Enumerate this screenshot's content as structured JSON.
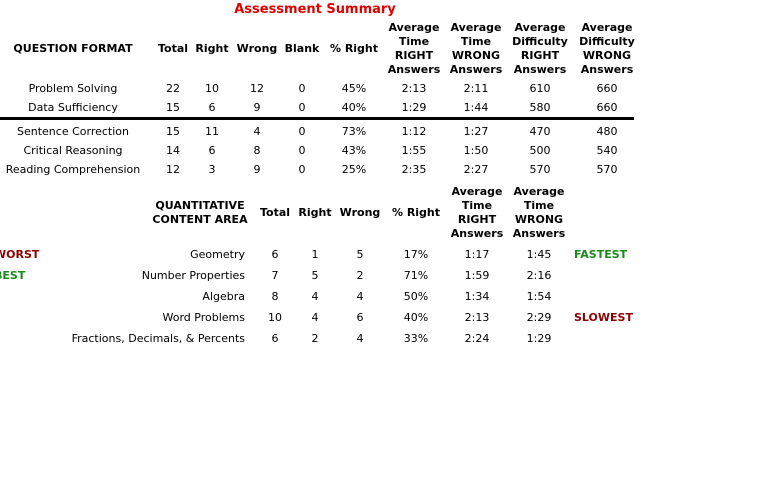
{
  "title": "Assessment Summary",
  "colors": {
    "title": "#e00000",
    "worst": "#8b0000",
    "best": "#1a8a1a",
    "fastest": "#1a8a1a",
    "slowest": "#8b0000"
  },
  "table1": {
    "headers": {
      "format": "QUESTION FORMAT",
      "total": "Total",
      "right": "Right",
      "wrong": "Wrong",
      "blank": "Blank",
      "pct": "% Right",
      "avg_time_right": [
        "Average",
        "Time",
        "RIGHT",
        "Answers"
      ],
      "avg_time_wrong": [
        "Average",
        "Time",
        "WRONG",
        "Answers"
      ],
      "avg_diff_right": [
        "Average",
        "Difficulty",
        "RIGHT",
        "Answers"
      ],
      "avg_diff_wrong": [
        "Average",
        "Difficulty",
        "WRONG",
        "Answers"
      ]
    },
    "rows": [
      {
        "label": "Problem Solving",
        "total": "22",
        "right": "10",
        "wrong": "12",
        "blank": "0",
        "pct": "45%",
        "time_right": "2:13",
        "time_wrong": "2:11",
        "diff_right": "610",
        "diff_wrong": "660"
      },
      {
        "label": "Data Sufficiency",
        "total": "15",
        "right": "6",
        "wrong": "9",
        "blank": "0",
        "pct": "40%",
        "time_right": "1:29",
        "time_wrong": "1:44",
        "diff_right": "580",
        "diff_wrong": "660"
      },
      {
        "label": "Sentence Correction",
        "total": "15",
        "right": "11",
        "wrong": "4",
        "blank": "0",
        "pct": "73%",
        "time_right": "1:12",
        "time_wrong": "1:27",
        "diff_right": "470",
        "diff_wrong": "480"
      },
      {
        "label": "Critical Reasoning",
        "total": "14",
        "right": "6",
        "wrong": "8",
        "blank": "0",
        "pct": "43%",
        "time_right": "1:55",
        "time_wrong": "1:50",
        "diff_right": "500",
        "diff_wrong": "540"
      },
      {
        "label": "Reading Comprehension",
        "total": "12",
        "right": "3",
        "wrong": "9",
        "blank": "0",
        "pct": "25%",
        "time_right": "2:35",
        "time_wrong": "2:27",
        "diff_right": "570",
        "diff_wrong": "570"
      }
    ]
  },
  "table2": {
    "headers": {
      "area": [
        "QUANTITATIVE",
        "CONTENT AREA"
      ],
      "total": "Total",
      "right": "Right",
      "wrong": "Wrong",
      "pct": "% Right",
      "avg_time_right": [
        "Average",
        "Time",
        "RIGHT",
        "Answers"
      ],
      "avg_time_wrong": [
        "Average",
        "Time",
        "WRONG",
        "Answers"
      ]
    },
    "rows": [
      {
        "label": "Geometry",
        "total": "6",
        "right": "1",
        "wrong": "5",
        "pct": "17%",
        "time_right": "1:17",
        "time_wrong": "1:45",
        "left_tag": "WORST",
        "right_tag": "FASTEST"
      },
      {
        "label": "Number Properties",
        "total": "7",
        "right": "5",
        "wrong": "2",
        "pct": "71%",
        "time_right": "1:59",
        "time_wrong": "2:16",
        "left_tag": "BEST",
        "right_tag": ""
      },
      {
        "label": "Algebra",
        "total": "8",
        "right": "4",
        "wrong": "4",
        "pct": "50%",
        "time_right": "1:34",
        "time_wrong": "1:54",
        "left_tag": "",
        "right_tag": ""
      },
      {
        "label": "Word Problems",
        "total": "10",
        "right": "4",
        "wrong": "6",
        "pct": "40%",
        "time_right": "2:13",
        "time_wrong": "2:29",
        "left_tag": "",
        "right_tag": "SLOWEST"
      },
      {
        "label": "Fractions, Decimals, & Percents",
        "total": "6",
        "right": "2",
        "wrong": "4",
        "pct": "33%",
        "time_right": "2:24",
        "time_wrong": "1:29",
        "left_tag": "",
        "right_tag": ""
      }
    ]
  }
}
